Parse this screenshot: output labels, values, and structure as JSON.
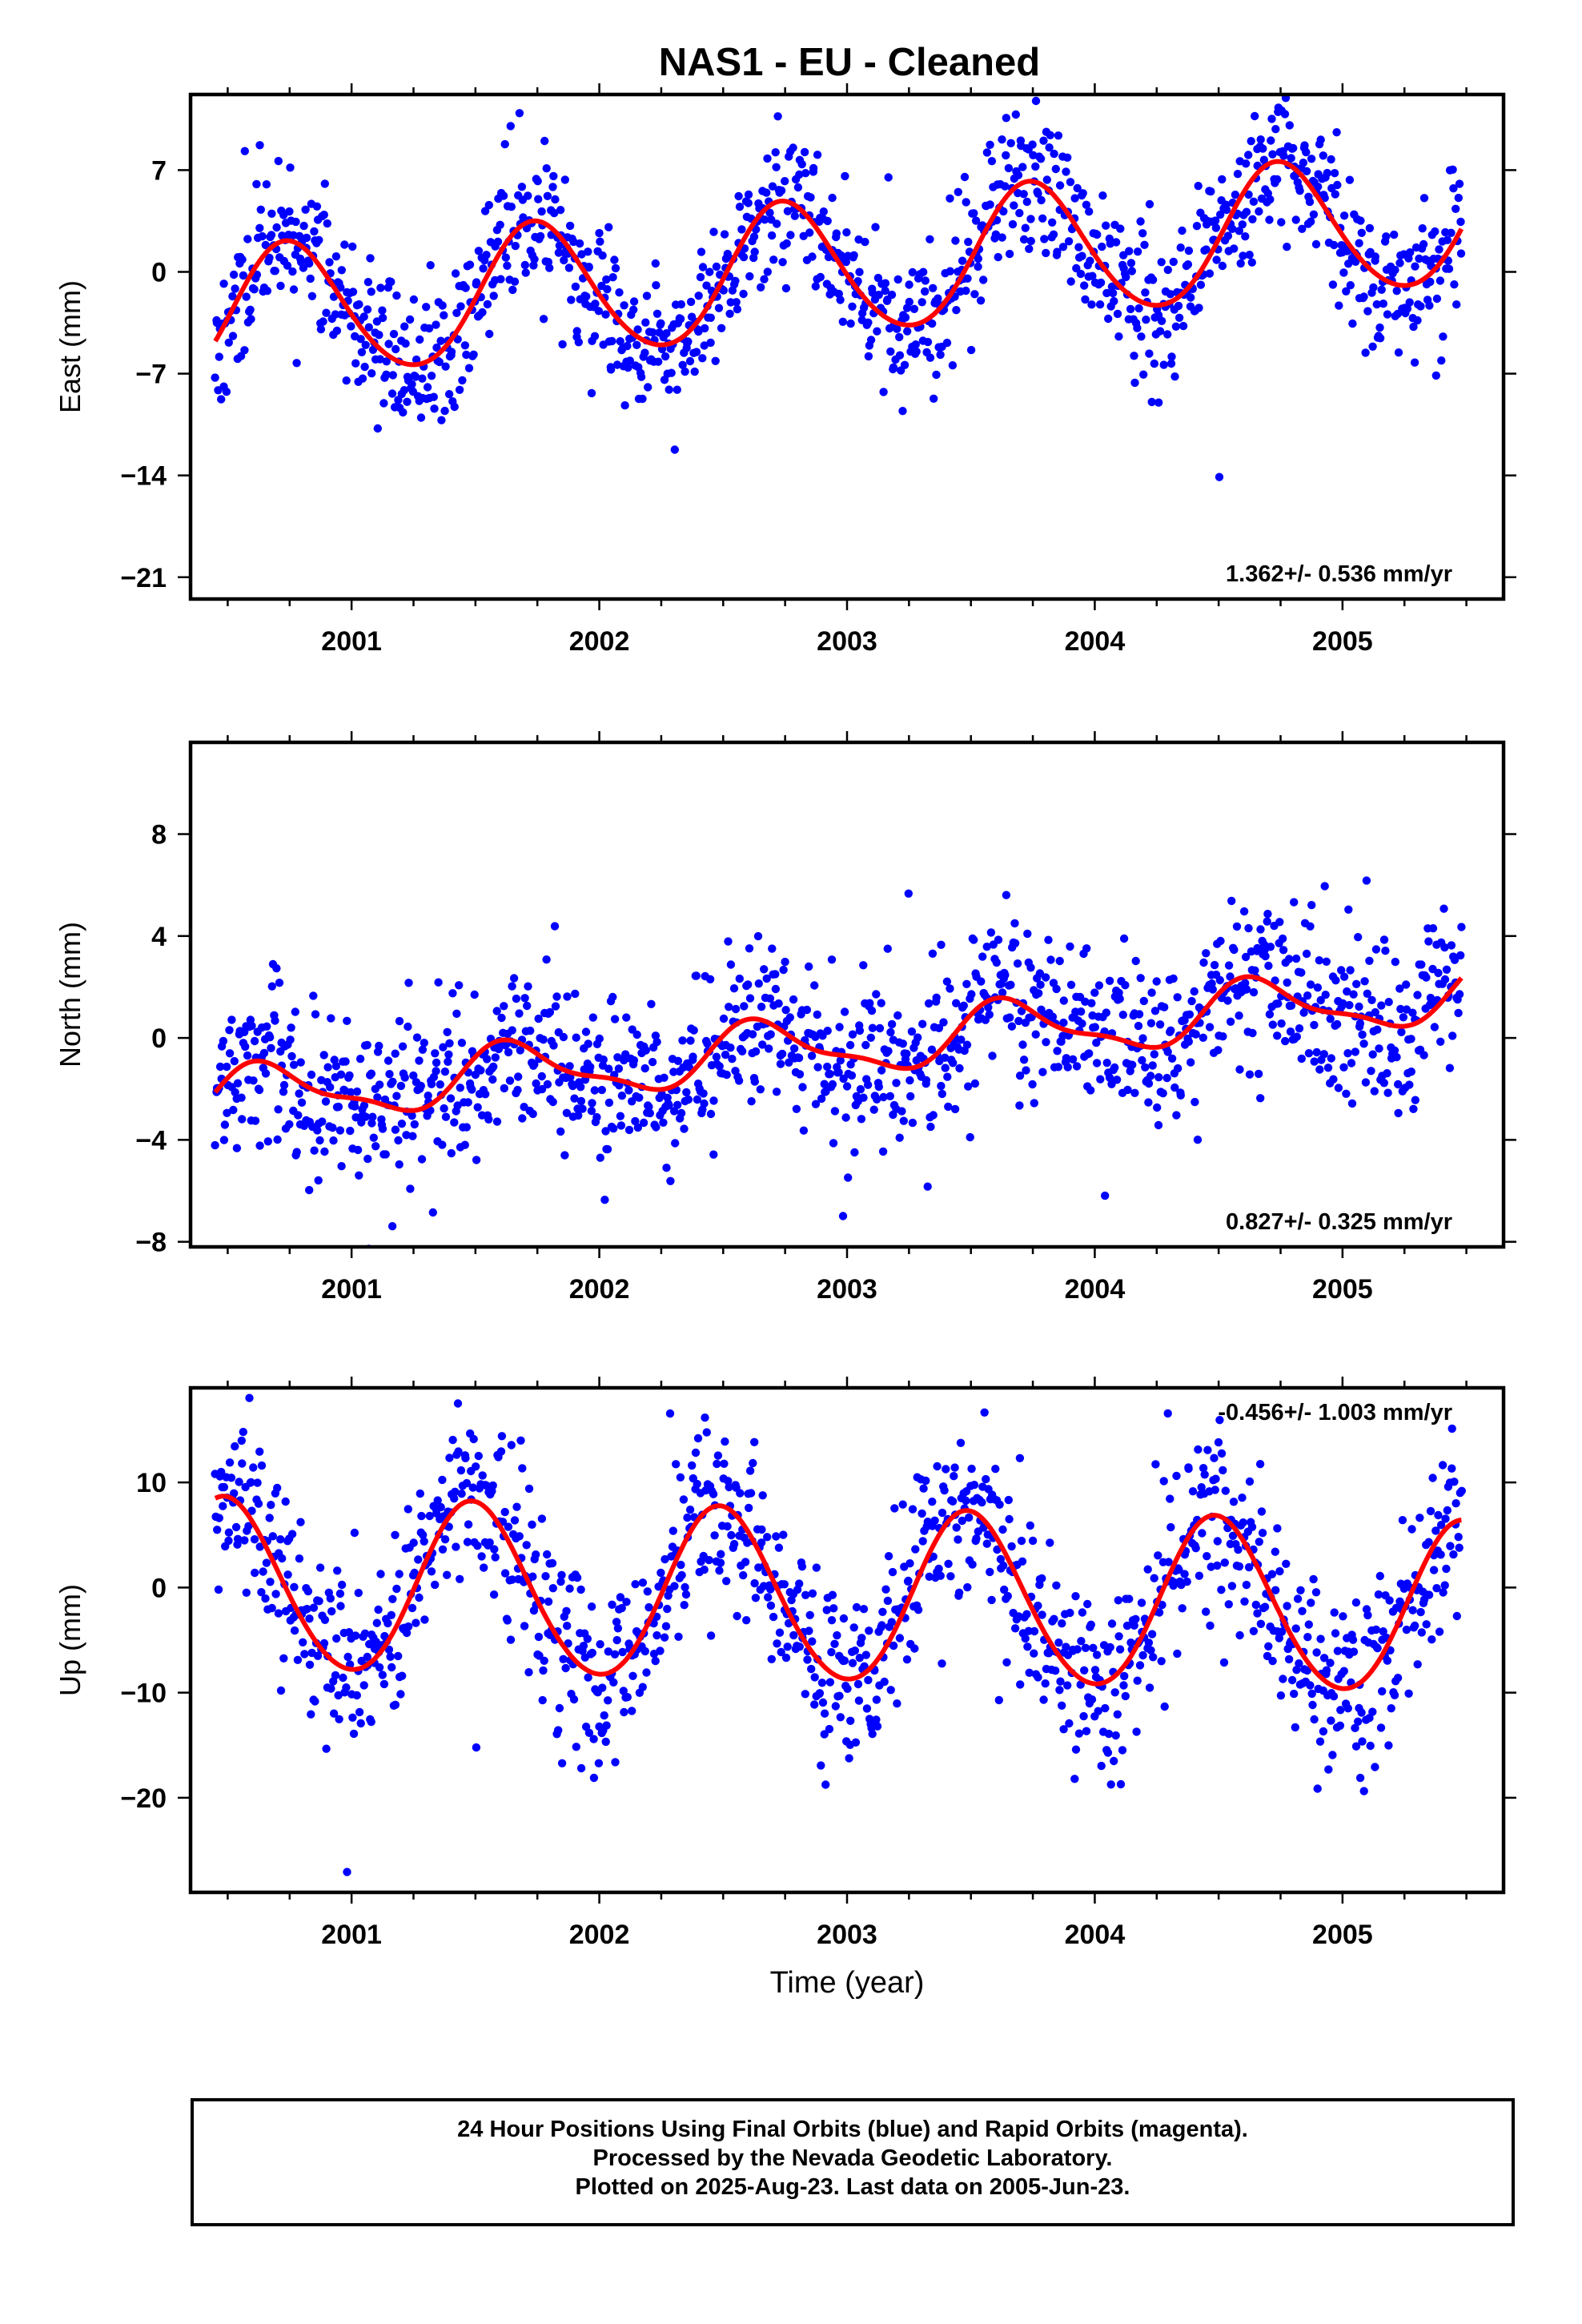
{
  "title": "NAS1  - EU - Cleaned",
  "footer": {
    "line1": "24 Hour Positions Using Final Orbits (blue) and Rapid Orbits (magenta).",
    "line2": "Processed by the Nevada Geodetic Laboratory.",
    "line3": "Plotted on 2025-Aug-23. Last data on 2005-Jun-23."
  },
  "colors": {
    "points": "#0000ff",
    "model": "#ff0000",
    "axes": "#000000"
  },
  "chart_data": [
    {
      "type": "scatter",
      "panel": "east",
      "ylabel": "East (mm)",
      "xlabel": "",
      "xlim": [
        2000.35,
        2005.65
      ],
      "ylim": [
        -22.5,
        12.2
      ],
      "xticks": [
        2001,
        2002,
        2003,
        2004,
        2005
      ],
      "yticks": [
        -21,
        -14,
        -7,
        0,
        7
      ],
      "ytick_labels": [
        "−21",
        "−14",
        "−7",
        "0",
        "7"
      ],
      "rate_label": "1.362+/- 0.536 mm/yr",
      "rate_position": "bottom-right",
      "grid": false,
      "series": [
        {
          "kind": "points",
          "x_start": 2000.45,
          "x_end": 2005.48,
          "count": 1250,
          "scatter_sd": 2.6,
          "seed": 11
        },
        {
          "kind": "model",
          "trend": 1.362,
          "ref_year": 2003.0,
          "offset": 0.3,
          "ann_cos": -0.2,
          "ann_sin": -4.6,
          "semi_cos": -0.3,
          "semi_sin": 0.2
        }
      ]
    },
    {
      "type": "scatter",
      "panel": "north",
      "ylabel": "North (mm)",
      "xlabel": "",
      "xlim": [
        2000.35,
        2005.65
      ],
      "ylim": [
        -8.2,
        11.6
      ],
      "xticks": [
        2001,
        2002,
        2003,
        2004,
        2005
      ],
      "yticks": [
        -8,
        -4,
        0,
        4,
        8
      ],
      "ytick_labels": [
        "−8",
        "−4",
        "0",
        "4",
        "8"
      ],
      "rate_label": "0.827+/- 0.325 mm/yr",
      "rate_position": "bottom-right",
      "grid": false,
      "series": [
        {
          "kind": "points",
          "x_start": 2000.45,
          "x_end": 2005.48,
          "count": 1250,
          "scatter_sd": 1.6,
          "seed": 23
        },
        {
          "kind": "model",
          "trend": 0.827,
          "ref_year": 2003.0,
          "offset": -0.3,
          "ann_cos": -0.6,
          "ann_sin": -0.9,
          "semi_cos": 0.2,
          "semi_sin": 0.3
        }
      ]
    },
    {
      "type": "scatter",
      "panel": "up",
      "ylabel": "Up (mm)",
      "xlabel": "Time (year)",
      "xlim": [
        2000.35,
        2005.65
      ],
      "ylim": [
        -29,
        19
      ],
      "xticks": [
        2001,
        2002,
        2003,
        2004,
        2005
      ],
      "yticks": [
        -20,
        -10,
        0,
        10
      ],
      "ytick_labels": [
        "−20",
        "−10",
        "0",
        "10"
      ],
      "rate_label": "-0.456+/- 1.003 mm/yr",
      "rate_position": "top-right",
      "grid": false,
      "series": [
        {
          "kind": "points",
          "x_start": 2000.45,
          "x_end": 2005.48,
          "count": 1250,
          "scatter_sd": 4.3,
          "seed": 37
        },
        {
          "kind": "model",
          "trend": -0.456,
          "ref_year": 2003.0,
          "offset": -1.0,
          "ann_cos": -8.1,
          "ann_sin": 0.4,
          "semi_cos": 0.4,
          "semi_sin": -0.3
        }
      ]
    }
  ]
}
